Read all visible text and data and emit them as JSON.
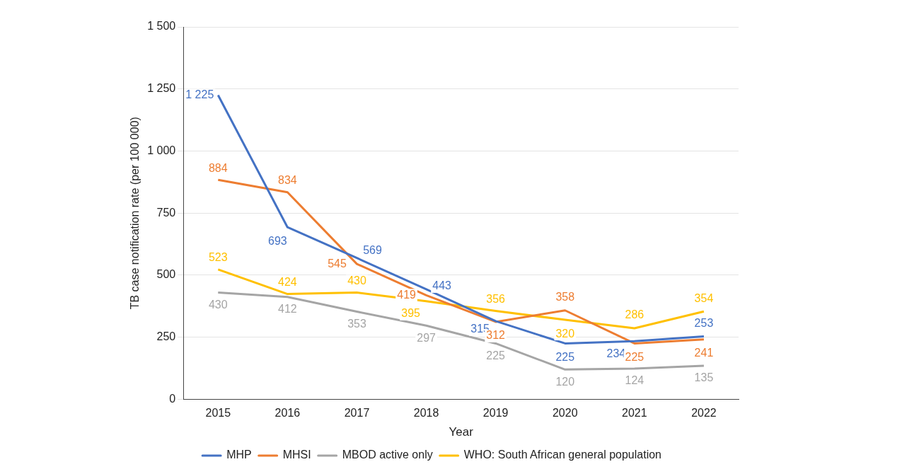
{
  "chart_data": {
    "type": "line",
    "xlabel": "Year",
    "ylabel": "TB case notification rate (per 100 000)",
    "categories": [
      "2015",
      "2016",
      "2017",
      "2018",
      "2019",
      "2020",
      "2021",
      "2022"
    ],
    "series": [
      {
        "name": "MHP",
        "color": "#4472c4",
        "values": [
          1225,
          693,
          569,
          443,
          315,
          225,
          234,
          253
        ],
        "value_labels": [
          "1 225",
          "693",
          "569",
          "443",
          "315",
          "225",
          "234",
          "253"
        ]
      },
      {
        "name": "MHSI",
        "color": "#ed7d31",
        "values": [
          884,
          834,
          545,
          419,
          312,
          358,
          225,
          241
        ],
        "value_labels": [
          "884",
          "834",
          "545",
          "419",
          "312",
          "358",
          "225",
          "241"
        ]
      },
      {
        "name": "MBOD active only",
        "color": "#a5a5a5",
        "values": [
          430,
          412,
          353,
          297,
          225,
          120,
          124,
          135
        ],
        "value_labels": [
          "430",
          "412",
          "353",
          "297",
          "225",
          "120",
          "124",
          "135"
        ]
      },
      {
        "name": "WHO: South African general population",
        "color": "#ffc000",
        "values": [
          523,
          424,
          430,
          395,
          356,
          320,
          286,
          354
        ],
        "value_labels": [
          "523",
          "424",
          "430",
          "395",
          "356",
          "320",
          "286",
          "354"
        ]
      }
    ],
    "ylim": [
      0,
      1500
    ],
    "yticks": [
      0,
      250,
      500,
      750,
      {
        "value": 1000,
        "label": "1 000"
      },
      {
        "value": 1250,
        "label": "1 250"
      },
      {
        "value": 1500,
        "label": "1 500"
      }
    ],
    "grid": "y",
    "legend": "bottom",
    "marker": "none",
    "line_style": "solid"
  }
}
